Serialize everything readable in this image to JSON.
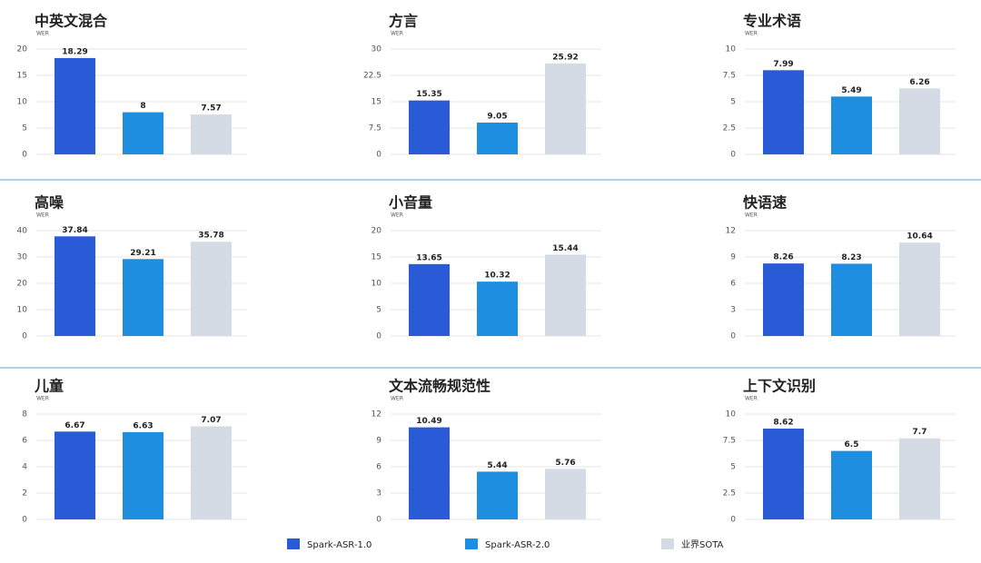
{
  "chart_data": [
    {
      "type": "bar",
      "title": "中英文混合",
      "y_label": "WER",
      "values": [
        18.29,
        8,
        7.57
      ],
      "ylim": [
        0,
        20
      ],
      "yticks": [
        0,
        5,
        10,
        15,
        20
      ],
      "grid": true
    },
    {
      "type": "bar",
      "title": "方言",
      "y_label": "WER",
      "values": [
        15.35,
        9.05,
        25.92
      ],
      "ylim": [
        0,
        30
      ],
      "yticks": [
        0,
        7.5,
        15,
        22.5,
        30
      ],
      "grid": true
    },
    {
      "type": "bar",
      "title": "专业术语",
      "y_label": "WER",
      "values": [
        7.99,
        5.49,
        6.26
      ],
      "ylim": [
        0,
        10
      ],
      "yticks": [
        0,
        2.5,
        5,
        7.5,
        10
      ],
      "grid": true
    },
    {
      "type": "bar",
      "title": "高噪",
      "y_label": "WER",
      "values": [
        37.84,
        29.21,
        35.78
      ],
      "ylim": [
        0,
        40
      ],
      "yticks": [
        0,
        10,
        20,
        30,
        40
      ],
      "grid": true
    },
    {
      "type": "bar",
      "title": "小音量",
      "y_label": "WER",
      "values": [
        13.65,
        10.32,
        15.44
      ],
      "ylim": [
        0,
        20
      ],
      "yticks": [
        0,
        5,
        10,
        15,
        20
      ],
      "grid": true
    },
    {
      "type": "bar",
      "title": "快语速",
      "y_label": "WER",
      "values": [
        8.26,
        8.23,
        10.64
      ],
      "ylim": [
        0,
        12
      ],
      "yticks": [
        0,
        3,
        6,
        9,
        12
      ],
      "grid": true
    },
    {
      "type": "bar",
      "title": "儿童",
      "y_label": "WER",
      "values": [
        6.67,
        6.63,
        7.07
      ],
      "ylim": [
        0,
        8
      ],
      "yticks": [
        0,
        2,
        4,
        6,
        8
      ],
      "grid": true
    },
    {
      "type": "bar",
      "title": "文本流畅规范性",
      "y_label": "WER",
      "values": [
        10.49,
        5.44,
        5.76
      ],
      "ylim": [
        0,
        12
      ],
      "yticks": [
        0,
        3,
        6,
        9,
        12
      ],
      "grid": true
    },
    {
      "type": "bar",
      "title": "上下文识别",
      "y_label": "WER",
      "values": [
        8.62,
        6.5,
        7.7
      ],
      "ylim": [
        0,
        10
      ],
      "yticks": [
        0,
        2.5,
        5,
        7.5,
        10
      ],
      "grid": true
    }
  ],
  "legend": [
    {
      "name": "Spark-ASR-1.0",
      "color": "#2a5bd7"
    },
    {
      "name": "Spark-ASR-2.0",
      "color": "#1e8fe0"
    },
    {
      "name": "业界SOTA",
      "color": "#d5dbe5"
    }
  ]
}
